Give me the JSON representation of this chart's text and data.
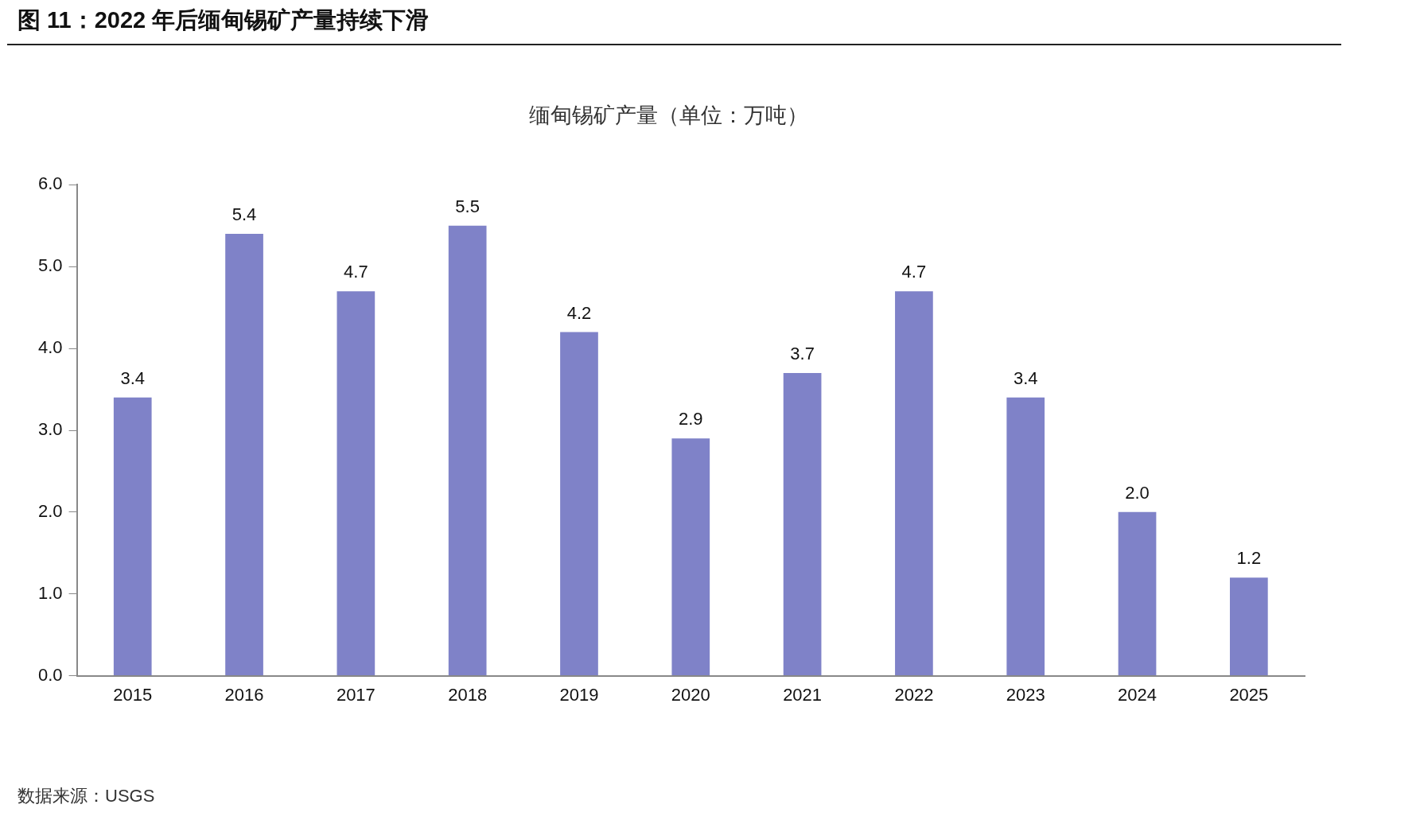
{
  "chart_data": {
    "type": "bar",
    "title": "缅甸锡矿产量（单位：万吨）",
    "subtitle": "图 11：2022 年后缅甸锡矿产量持续下滑",
    "categories": [
      "2015",
      "2016",
      "2017",
      "2018",
      "2019",
      "2020",
      "2021",
      "2022",
      "2023",
      "2024",
      "2025"
    ],
    "values": [
      3.4,
      5.4,
      4.7,
      5.5,
      4.2,
      2.9,
      3.7,
      4.7,
      3.4,
      2.0,
      1.2
    ],
    "value_labels": [
      "3.4",
      "5.4",
      "4.7",
      "5.5",
      "4.2",
      "2.9",
      "3.7",
      "4.7",
      "3.4",
      "2.0",
      "1.2"
    ],
    "color": "#7f82c8",
    "ylim": [
      0,
      6
    ],
    "yticks": [
      {
        "value": 0,
        "label": "0.0"
      },
      {
        "value": 1,
        "label": "1.0"
      },
      {
        "value": 2,
        "label": "2.0"
      },
      {
        "value": 3,
        "label": "3.0"
      },
      {
        "value": 4,
        "label": "4.0"
      },
      {
        "value": 5,
        "label": "5.0"
      },
      {
        "value": 6,
        "label": "6.0"
      }
    ],
    "grid": false,
    "legend": false,
    "annotations": [
      "数据来源：USGS"
    ]
  }
}
